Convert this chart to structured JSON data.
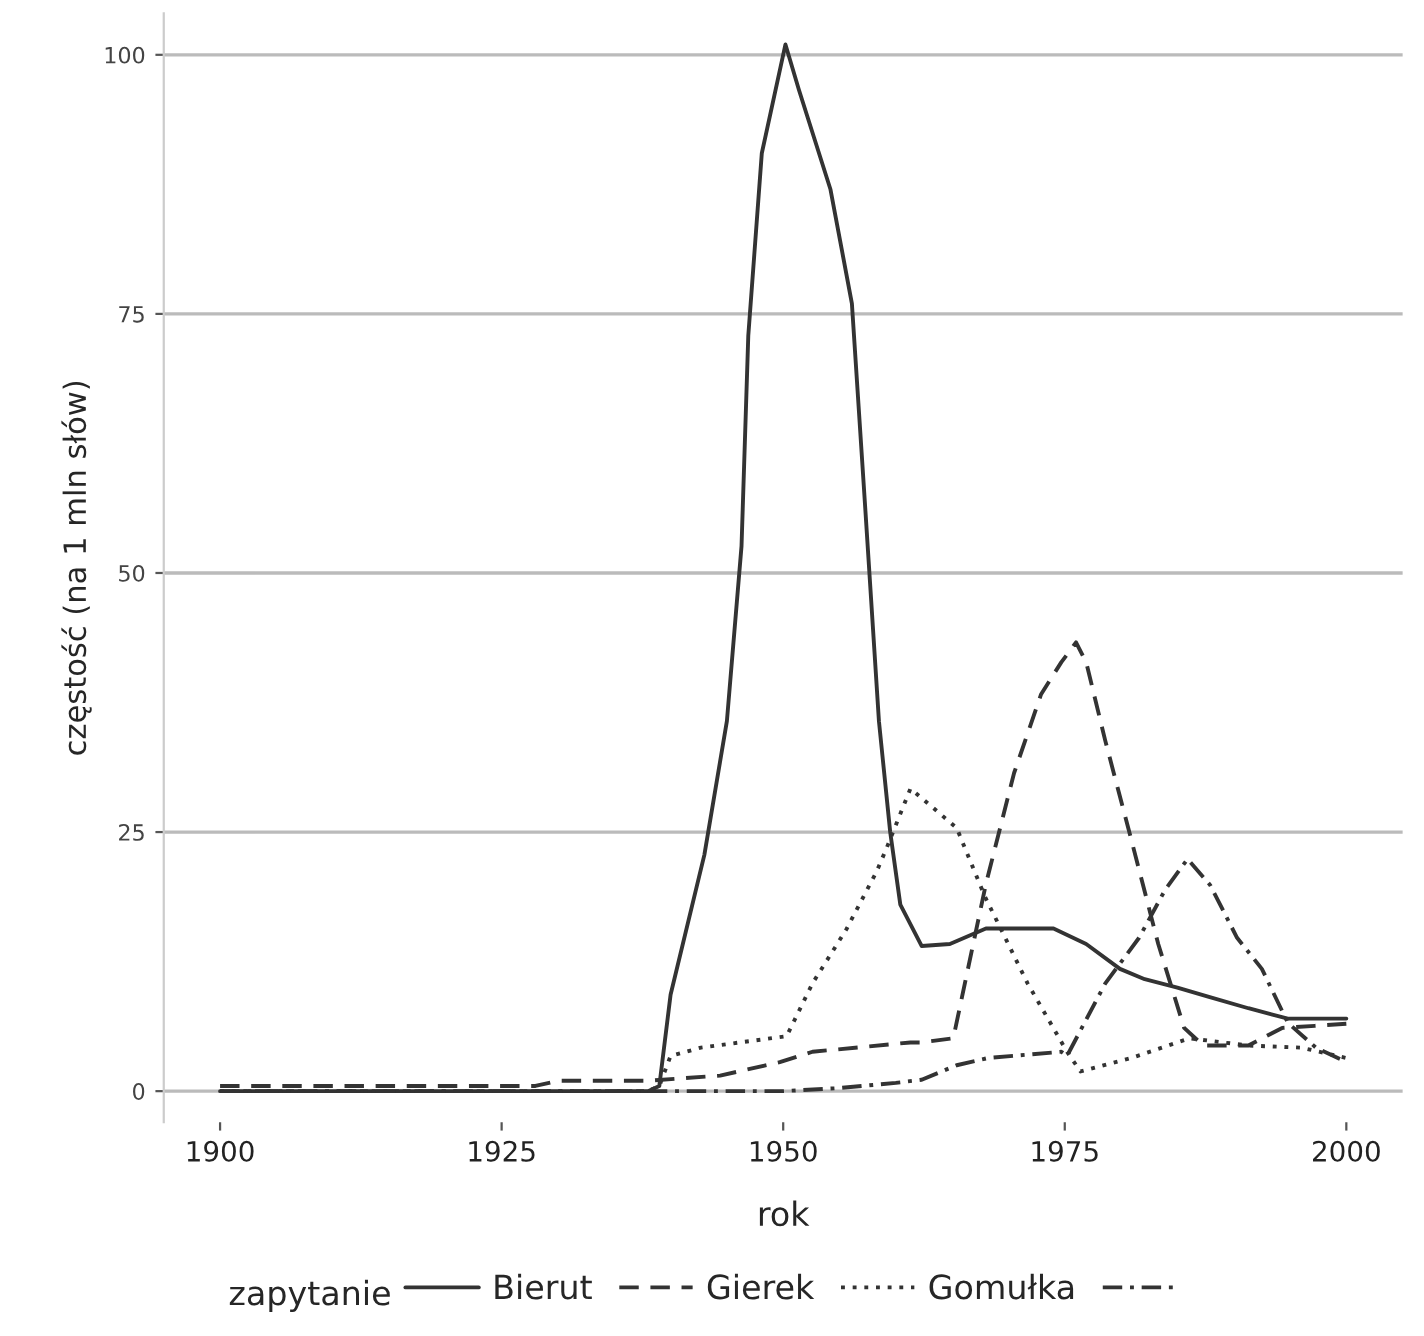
{
  "chart_data": {
    "type": "line",
    "xlabel": "rok",
    "ylabel": "częstość (na 1 mln słów)",
    "legend_title": "zapytanie",
    "xlim": [
      1895,
      2005
    ],
    "ylim": [
      -3,
      104
    ],
    "xticks": [
      1900,
      1925,
      1950,
      1975,
      2000
    ],
    "yticks": [
      0,
      25,
      50,
      75,
      100
    ],
    "grid": "y",
    "legend": "bottom",
    "series": [
      {
        "name": "Bierut",
        "color": "#333333",
        "line_style": "solid",
        "x": [
          1900,
          1920,
          1938,
          1939,
          1940,
          1943,
          1945,
          1946.3,
          1946.9,
          1948.1,
          1950.2,
          1951.4,
          1954.2,
          1956.1,
          1957.3,
          1958.5,
          1959.5,
          1960.4,
          1962.3,
          1964.8,
          1968,
          1974,
          1976.9,
          1979.9,
          1982.1,
          1985,
          1987.8,
          1991.3,
          1994.8,
          2000
        ],
        "values": [
          0,
          0,
          0,
          0.5,
          9.3,
          22.8,
          35.7,
          52.6,
          72.9,
          90.5,
          101,
          96.6,
          87,
          76,
          56,
          35.7,
          25,
          18,
          14,
          14.2,
          15.7,
          15.7,
          14.2,
          11.8,
          10.8,
          10,
          9.1,
          8,
          7,
          7
        ]
      },
      {
        "name": "Gierek",
        "color": "#333333",
        "line_style": "dashed",
        "x": [
          1900,
          1928,
          1930,
          1938,
          1944.4,
          1949.7,
          1952.6,
          1961.3,
          1962.3,
          1965.1,
          1968,
          1970.5,
          1972.9,
          1974.7,
          1976,
          1976.9,
          1978.6,
          1980.9,
          1983.3,
          1985.6,
          1987.3,
          1991.3,
          1994.3,
          1997.2,
          2000
        ],
        "values": [
          0.5,
          0.5,
          1,
          1,
          1.5,
          2.8,
          3.8,
          4.7,
          4.7,
          5.1,
          20,
          30.7,
          38.3,
          41.4,
          43.3,
          41.4,
          33.8,
          24.3,
          14.2,
          6.1,
          4.4,
          4.4,
          6.1,
          6.3,
          6.5
        ]
      },
      {
        "name": "Gomułka",
        "color": "#333333",
        "line_style": "dotted",
        "x": [
          1900,
          1938,
          1939,
          1940,
          1942.7,
          1950.3,
          1952.6,
          1955.6,
          1958.3,
          1959.2,
          1961.3,
          1965.4,
          1967.9,
          1971.7,
          1975.2,
          1976.4,
          1980.9,
          1986.1,
          1991.3,
          1996,
          2000
        ],
        "values": [
          0,
          0,
          0.5,
          3.4,
          4.2,
          5.3,
          10.4,
          15.6,
          21.2,
          23.5,
          29.2,
          25.4,
          18.8,
          10.4,
          3.8,
          1.9,
          3.2,
          5.1,
          4.4,
          4.2,
          3.2
        ]
      },
      {
        "color": "#333333",
        "line_style": "dashdot",
        "x": [
          1900,
          1950,
          1955,
          1960,
          1962.3,
          1965.4,
          1968.2,
          1974.7,
          1975.2,
          1978.6,
          1981.6,
          1983.9,
          1985.9,
          1987.9,
          1990.3,
          1992.5,
          1994.8,
          1997.3,
          2000
        ],
        "values": [
          0,
          0,
          0.3,
          0.8,
          1.1,
          2.5,
          3.2,
          3.8,
          3.4,
          10.4,
          14.8,
          19.4,
          22.4,
          19.9,
          14.8,
          11.8,
          6.6,
          4.2,
          2.8
        ]
      }
    ]
  }
}
